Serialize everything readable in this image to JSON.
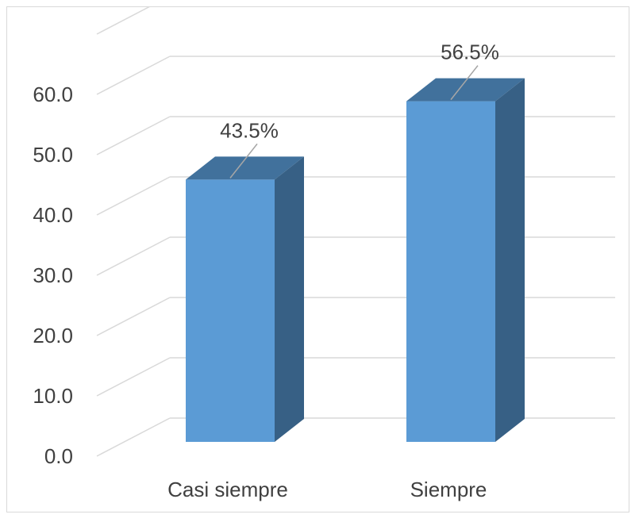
{
  "chart_data": {
    "type": "bar",
    "categories": [
      "Casi siempre",
      "Siempre"
    ],
    "values": [
      43.5,
      56.5
    ],
    "data_labels": [
      "43.5%",
      "56.5%"
    ],
    "ylim": [
      0,
      60
    ],
    "yticks": [
      "0.0",
      "10.0",
      "20.0",
      "30.0",
      "40.0",
      "50.0",
      "60.0"
    ],
    "grid": true,
    "style": "3d-column",
    "colors": {
      "front": "#5b9bd5",
      "top": "#41719c",
      "side": "#376085",
      "grid": "#d9d9d9",
      "text": "#404040"
    }
  }
}
